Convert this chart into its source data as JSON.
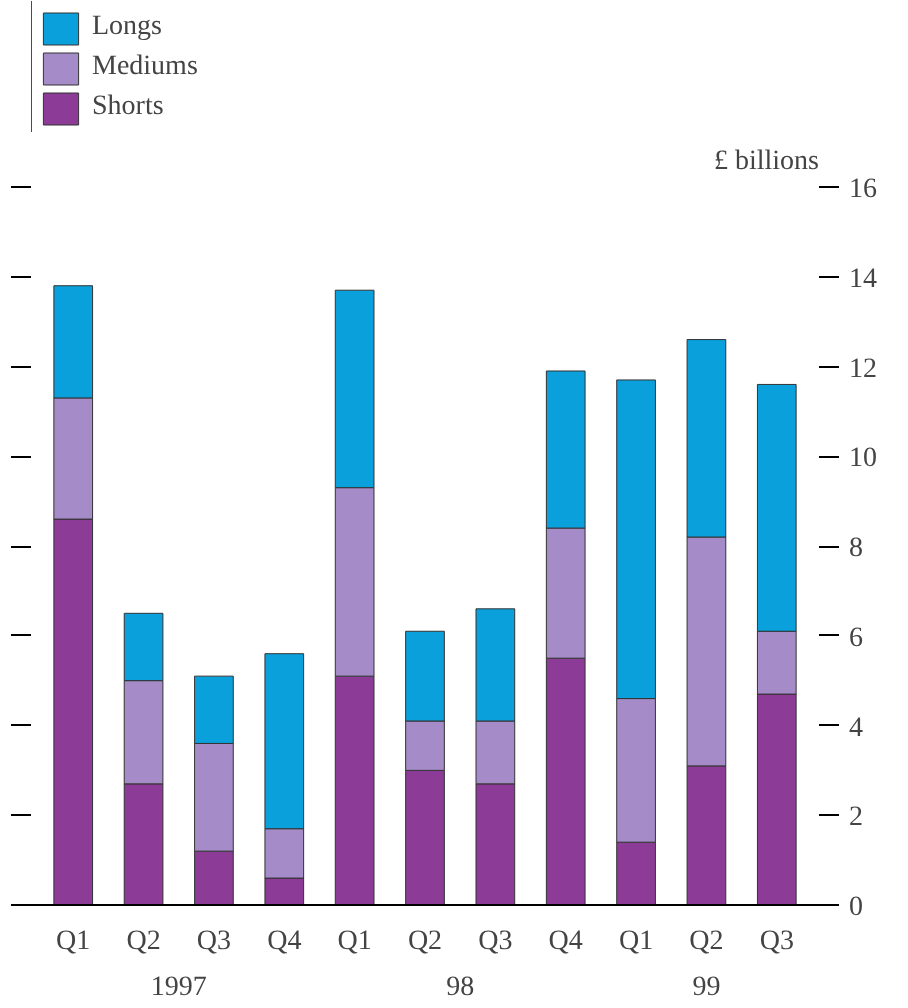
{
  "chart_data": {
    "type": "bar",
    "stacked": true,
    "ylabel": "£ billions",
    "categories": [
      "Q1",
      "Q2",
      "Q3",
      "Q4",
      "Q1",
      "Q2",
      "Q3",
      "Q4",
      "Q1",
      "Q2",
      "Q3"
    ],
    "annotations": [
      "1997",
      "98",
      "99"
    ],
    "series": [
      {
        "name": "Shorts",
        "color": "#8c3c96",
        "values": [
          8.6,
          2.7,
          1.2,
          0.6,
          5.1,
          3.0,
          2.7,
          5.5,
          1.4,
          3.1,
          4.7
        ]
      },
      {
        "name": "Mediums",
        "color": "#a58cc8",
        "values": [
          2.7,
          2.3,
          2.4,
          1.1,
          4.2,
          1.1,
          1.4,
          2.9,
          3.2,
          5.1,
          1.4
        ]
      },
      {
        "name": "Longs",
        "color": "#0aa0dc",
        "values": [
          2.5,
          1.5,
          1.5,
          3.9,
          4.4,
          2.0,
          2.5,
          3.5,
          7.1,
          4.4,
          5.5
        ]
      }
    ],
    "ylim": [
      0,
      16
    ],
    "yticks": [
      0,
      2,
      4,
      6,
      8,
      10,
      12,
      14,
      16
    ],
    "grid": false,
    "legend": "top left"
  }
}
